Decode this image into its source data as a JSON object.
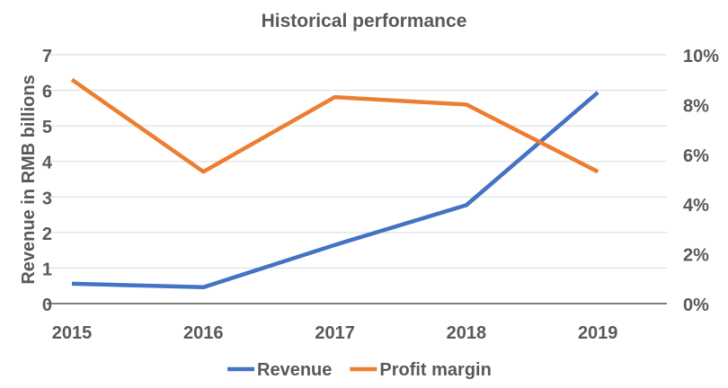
{
  "chart_data": {
    "type": "line",
    "title": "Historical performance",
    "categories": [
      "2015",
      "2016",
      "2017",
      "2018",
      "2019"
    ],
    "ylabel": "Revenue in RMB billions",
    "y2label": "",
    "xlabel": "",
    "ylim": [
      0,
      7
    ],
    "y2lim": [
      0,
      0.1
    ],
    "yticks": [
      "0",
      "1",
      "2",
      "3",
      "4",
      "5",
      "6",
      "7"
    ],
    "y2ticks": [
      "0%",
      "2%",
      "4%",
      "6%",
      "8%",
      "10%"
    ],
    "grid": true,
    "legend_position": "bottom",
    "series": [
      {
        "name": "Revenue",
        "axis": "left",
        "color": "#4472C4",
        "values": [
          0.56,
          0.46,
          1.65,
          2.77,
          5.94
        ]
      },
      {
        "name": "Profit margin",
        "axis": "right",
        "color": "#ED7D31",
        "values": [
          0.09,
          0.053,
          0.083,
          0.08,
          0.053
        ]
      }
    ]
  }
}
